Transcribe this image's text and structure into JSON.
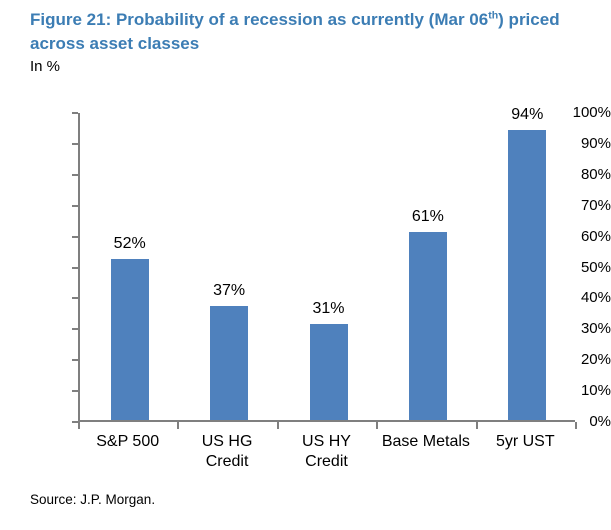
{
  "header": {
    "title_line1_pre": "Figure 21: Probability of a recession as currently (Mar 06",
    "title_line1_sup": "th",
    "title_line1_post": ") priced",
    "title_line2": "across asset classes",
    "units_label": "In %"
  },
  "chart_data": {
    "type": "bar",
    "title": "Figure 21: Probability of a recession as currently (Mar 06th) priced across asset classes",
    "subtitle": "In %",
    "categories": [
      "S&P 500",
      "US HG\nCredit",
      "US HY\nCredit",
      "Base Metals",
      "5yr UST"
    ],
    "values": [
      52,
      37,
      31,
      61,
      94
    ],
    "value_labels": [
      "52%",
      "37%",
      "31%",
      "61%",
      "94%"
    ],
    "y_ticks": [
      0,
      10,
      20,
      30,
      40,
      50,
      60,
      70,
      80,
      90,
      100
    ],
    "y_tick_labels": [
      "0%",
      "10%",
      "20%",
      "30%",
      "40%",
      "50%",
      "60%",
      "70%",
      "80%",
      "90%",
      "100%"
    ],
    "ylim": [
      0,
      100
    ],
    "xlabel": "",
    "ylabel": "",
    "grid": false,
    "legend": "none",
    "bar_color": "#4F81BD",
    "axis_color": "#7F7F7F",
    "label_color": "#000000"
  },
  "footer": {
    "source": "Source: J.P. Morgan."
  },
  "colors": {
    "title_blue": "#3C7DB4",
    "bar_blue": "#4F81BD",
    "axis_gray": "#7F7F7F"
  }
}
